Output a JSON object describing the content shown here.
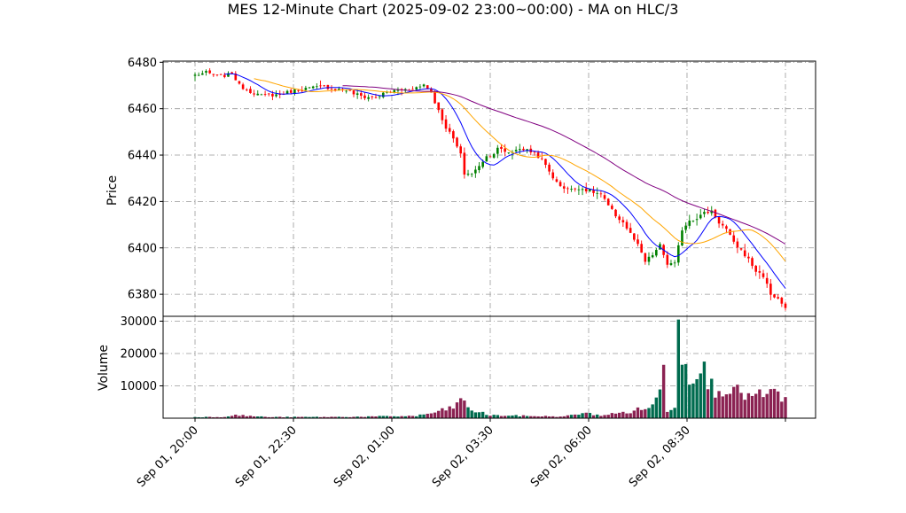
{
  "chart_data": {
    "type": "candlestick",
    "title": "MES 12-Minute Chart (2025-09-02 23:00~00:00) - MA on HLC/3",
    "price_panel": {
      "ylabel": "Price",
      "ylim": [
        6370.5,
        6480.5
      ],
      "yticks": [
        6380,
        6400,
        6420,
        6440,
        6460,
        6480
      ],
      "anchors": [
        [
          0,
          6474.5
        ],
        [
          3,
          6475.5
        ],
        [
          6,
          6474
        ],
        [
          9,
          6474.5
        ],
        [
          10,
          6475.5
        ],
        [
          12,
          6470
        ],
        [
          15,
          6467.5
        ],
        [
          18,
          6465.5
        ],
        [
          20,
          6466
        ],
        [
          23,
          6466
        ],
        [
          26,
          6467.5
        ],
        [
          29,
          6468.5
        ],
        [
          32,
          6469
        ],
        [
          35,
          6469.5
        ],
        [
          38,
          6468.5
        ],
        [
          41,
          6468
        ],
        [
          43,
          6466.5
        ],
        [
          46,
          6465
        ],
        [
          49,
          6465
        ],
        [
          52,
          6467
        ],
        [
          55,
          6468
        ],
        [
          58,
          6468.5
        ],
        [
          61,
          6469.5
        ],
        [
          62,
          6470.5
        ],
        [
          64,
          6467
        ],
        [
          66,
          6459
        ],
        [
          68,
          6452
        ],
        [
          70,
          6447
        ],
        [
          72,
          6440
        ],
        [
          73,
          6432
        ],
        [
          75,
          6432
        ],
        [
          77,
          6435
        ],
        [
          79,
          6440
        ],
        [
          80,
          6439
        ],
        [
          82,
          6443.5
        ],
        [
          84,
          6441
        ],
        [
          86,
          6441.5
        ],
        [
          88,
          6443
        ],
        [
          90,
          6442
        ],
        [
          92,
          6441
        ],
        [
          94,
          6438
        ],
        [
          96,
          6433
        ],
        [
          98,
          6428
        ],
        [
          100,
          6426
        ],
        [
          102,
          6425
        ],
        [
          104,
          6426
        ],
        [
          106,
          6425
        ],
        [
          108,
          6424
        ],
        [
          110,
          6423
        ],
        [
          112,
          6418
        ],
        [
          114,
          6414
        ],
        [
          116,
          6411
        ],
        [
          118,
          6406
        ],
        [
          120,
          6401
        ],
        [
          122,
          6394
        ],
        [
          124,
          6397
        ],
        [
          126,
          6401
        ],
        [
          128,
          6393
        ],
        [
          130,
          6393
        ],
        [
          132,
          6408
        ],
        [
          134,
          6412
        ],
        [
          136,
          6413
        ],
        [
          138,
          6415
        ],
        [
          140,
          6416
        ],
        [
          142,
          6411
        ],
        [
          144,
          6408
        ],
        [
          146,
          6402
        ],
        [
          148,
          6399
        ],
        [
          150,
          6395
        ],
        [
          152,
          6390
        ],
        [
          154,
          6388
        ],
        [
          156,
          6380
        ],
        [
          158,
          6378
        ],
        [
          160,
          6374
        ]
      ],
      "moving_averages": [
        {
          "color": "#0000ff",
          "period": 9,
          "start_index": 8
        },
        {
          "color": "#ffa500",
          "period": 20,
          "start_index": 16
        },
        {
          "color": "#800080",
          "period": 50,
          "start_index": 40
        }
      ]
    },
    "volume_panel": {
      "ylabel": "Volume",
      "ylim": [
        0,
        31500
      ],
      "yticks": [
        10000,
        20000,
        30000
      ],
      "yticklabels": [
        "10000",
        "20000",
        "30000"
      ],
      "anchors": [
        [
          0,
          350
        ],
        [
          8,
          400
        ],
        [
          10,
          1000
        ],
        [
          20,
          350
        ],
        [
          40,
          400
        ],
        [
          60,
          700
        ],
        [
          66,
          2000
        ],
        [
          70,
          3500
        ],
        [
          72,
          5500
        ],
        [
          75,
          2500
        ],
        [
          80,
          900
        ],
        [
          100,
          500
        ],
        [
          105,
          1600
        ],
        [
          110,
          900
        ],
        [
          118,
          2000
        ],
        [
          124,
          3800
        ],
        [
          126,
          8000
        ],
        [
          127,
          16500
        ],
        [
          128,
          2500
        ],
        [
          130,
          4000
        ],
        [
          131,
          30500
        ],
        [
          132,
          18000
        ],
        [
          134,
          14000
        ],
        [
          137,
          17500
        ],
        [
          139,
          11000
        ],
        [
          141,
          9000
        ],
        [
          144,
          9500
        ],
        [
          148,
          7500
        ],
        [
          152,
          6500
        ],
        [
          156,
          8000
        ],
        [
          160,
          6000
        ]
      ]
    },
    "x_axis": {
      "n_bars": 161,
      "ticks": [
        {
          "index": 0,
          "label": "Sep 01, 20:00"
        },
        {
          "index": 26.67,
          "label": "Sep 01, 22:30"
        },
        {
          "index": 53.33,
          "label": "Sep 02, 01:00"
        },
        {
          "index": 80,
          "label": "Sep 02, 03:30"
        },
        {
          "index": 106.67,
          "label": "Sep 02, 06:00"
        },
        {
          "index": 133.33,
          "label": "Sep 02, 08:30"
        },
        {
          "index": 160,
          "label": ""
        }
      ]
    },
    "colors": {
      "up": "#008000",
      "down": "#ff0000",
      "vol_up": "#006b4e",
      "vol_down": "#8b2252",
      "grid": "#999999"
    },
    "grid": true
  }
}
